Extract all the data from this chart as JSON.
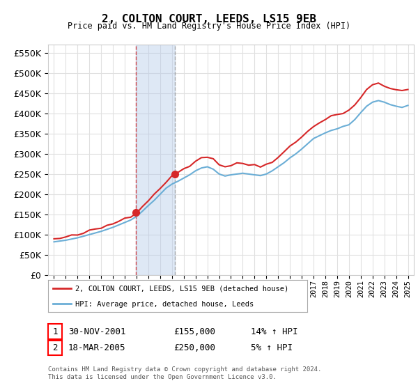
{
  "title": "2, COLTON COURT, LEEDS, LS15 9EB",
  "subtitle": "Price paid vs. HM Land Registry's House Price Index (HPI)",
  "footnote": "Contains HM Land Registry data © Crown copyright and database right 2024.\nThis data is licensed under the Open Government Licence v3.0.",
  "legend_entry1": "2, COLTON COURT, LEEDS, LS15 9EB (detached house)",
  "legend_entry2": "HPI: Average price, detached house, Leeds",
  "table_rows": [
    {
      "num": "1",
      "date": "30-NOV-2001",
      "price": "£155,000",
      "hpi": "14% ↑ HPI"
    },
    {
      "num": "2",
      "date": "18-MAR-2005",
      "price": "£250,000",
      "hpi": "5% ↑ HPI"
    }
  ],
  "purchase1": {
    "year": 2001.92,
    "value": 155000
  },
  "purchase2": {
    "year": 2005.22,
    "value": 250000
  },
  "vline1_x": 2001.92,
  "vline2_x": 2005.22,
  "shade_xmin": 2001.92,
  "shade_xmax": 2005.22,
  "hpi_color": "#6baed6",
  "price_color": "#d62728",
  "ylim": [
    0,
    570000
  ],
  "yticks": [
    0,
    50000,
    100000,
    150000,
    200000,
    250000,
    300000,
    350000,
    400000,
    450000,
    500000,
    550000
  ],
  "xlim_start": 1994.5,
  "xlim_end": 2025.5,
  "background_color": "#ffffff",
  "grid_color": "#e0e0e0",
  "years_hpi": [
    1995.0,
    1995.5,
    1996.0,
    1996.5,
    1997.0,
    1997.5,
    1998.0,
    1998.5,
    1999.0,
    1999.5,
    2000.0,
    2000.5,
    2001.0,
    2001.5,
    2002.0,
    2002.5,
    2003.0,
    2003.5,
    2004.0,
    2004.5,
    2005.0,
    2005.5,
    2006.0,
    2006.5,
    2007.0,
    2007.5,
    2008.0,
    2008.5,
    2009.0,
    2009.5,
    2010.0,
    2010.5,
    2011.0,
    2011.5,
    2012.0,
    2012.5,
    2013.0,
    2013.5,
    2014.0,
    2014.5,
    2015.0,
    2015.5,
    2016.0,
    2016.5,
    2017.0,
    2017.5,
    2018.0,
    2018.5,
    2019.0,
    2019.5,
    2020.0,
    2020.5,
    2021.0,
    2021.5,
    2022.0,
    2022.5,
    2023.0,
    2023.5,
    2024.0,
    2024.5,
    2025.0
  ],
  "hpi_values": [
    82000,
    84000,
    86000,
    89000,
    92000,
    96000,
    100000,
    104000,
    108000,
    113000,
    118000,
    124000,
    130000,
    136000,
    145000,
    158000,
    172000,
    185000,
    200000,
    215000,
    225000,
    232000,
    240000,
    248000,
    258000,
    265000,
    268000,
    262000,
    250000,
    245000,
    248000,
    250000,
    252000,
    250000,
    248000,
    246000,
    250000,
    258000,
    268000,
    278000,
    290000,
    300000,
    312000,
    325000,
    338000,
    345000,
    352000,
    358000,
    362000,
    368000,
    372000,
    385000,
    402000,
    418000,
    428000,
    432000,
    428000,
    422000,
    418000,
    415000,
    420000
  ]
}
